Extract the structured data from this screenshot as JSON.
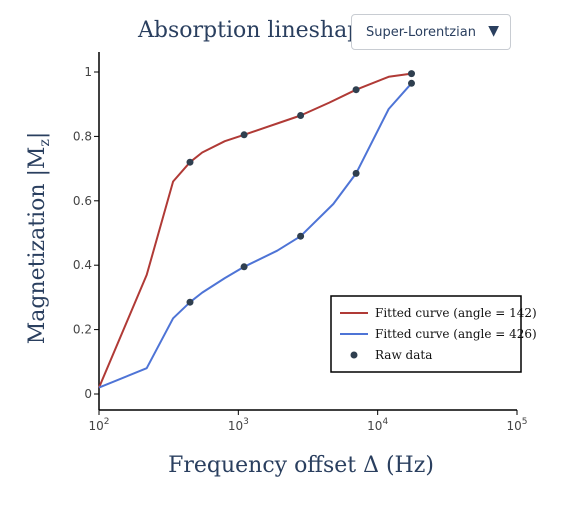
{
  "header": {
    "label": "Absorption lineshape:",
    "dropdown_value": "Super-Lorentzian",
    "dropdown_arrow": "▼"
  },
  "chart_data": {
    "type": "line",
    "x_scale": "log",
    "xlim": [
      100,
      100000
    ],
    "ylim": [
      0,
      1
    ],
    "xlabel": "Frequency offset Δ (Hz)",
    "ylabel": "Magnetization |M",
    "ylabel_sub": "z",
    "ylabel_end": "|",
    "x_ticks": [
      {
        "value": 100,
        "base": "10",
        "exp": "2"
      },
      {
        "value": 1000,
        "base": "10",
        "exp": "3"
      },
      {
        "value": 10000,
        "base": "10",
        "exp": "4"
      },
      {
        "value": 100000,
        "base": "10",
        "exp": "5"
      }
    ],
    "y_ticks": [
      {
        "value": 0,
        "label": "0"
      },
      {
        "value": 0.2,
        "label": "0.2"
      },
      {
        "value": 0.4,
        "label": "0.4"
      },
      {
        "value": 0.6,
        "label": "0.6"
      },
      {
        "value": 0.8,
        "label": "0.8"
      },
      {
        "value": 1,
        "label": "1"
      }
    ],
    "grid": false,
    "legend_position": "bottom-right",
    "series": [
      {
        "name": "Fitted curve (angle = 142)",
        "kind": "line",
        "color": "#b03a36",
        "x": [
          100,
          220,
          340,
          450,
          550,
          800,
          1100,
          1900,
          2800,
          4500,
          7000,
          12000,
          17500
        ],
        "y": [
          0.02,
          0.37,
          0.66,
          0.72,
          0.75,
          0.785,
          0.805,
          0.84,
          0.865,
          0.905,
          0.945,
          0.985,
          0.995
        ]
      },
      {
        "name": "Fitted curve (angle = 426)",
        "kind": "line",
        "color": "#4e74d6",
        "x": [
          100,
          220,
          340,
          450,
          550,
          800,
          1100,
          1900,
          2800,
          4800,
          7000,
          12000,
          17500
        ],
        "y": [
          0.02,
          0.08,
          0.235,
          0.285,
          0.315,
          0.36,
          0.395,
          0.445,
          0.49,
          0.59,
          0.685,
          0.885,
          0.965
        ]
      },
      {
        "name": "Raw data",
        "kind": "markers",
        "color": "#2f3f4f",
        "x": [
          450,
          1100,
          2800,
          7000,
          17500,
          450,
          1100,
          2800,
          7000,
          17500
        ],
        "y": [
          0.72,
          0.805,
          0.865,
          0.945,
          0.995,
          0.285,
          0.395,
          0.49,
          0.685,
          0.965
        ]
      }
    ]
  }
}
